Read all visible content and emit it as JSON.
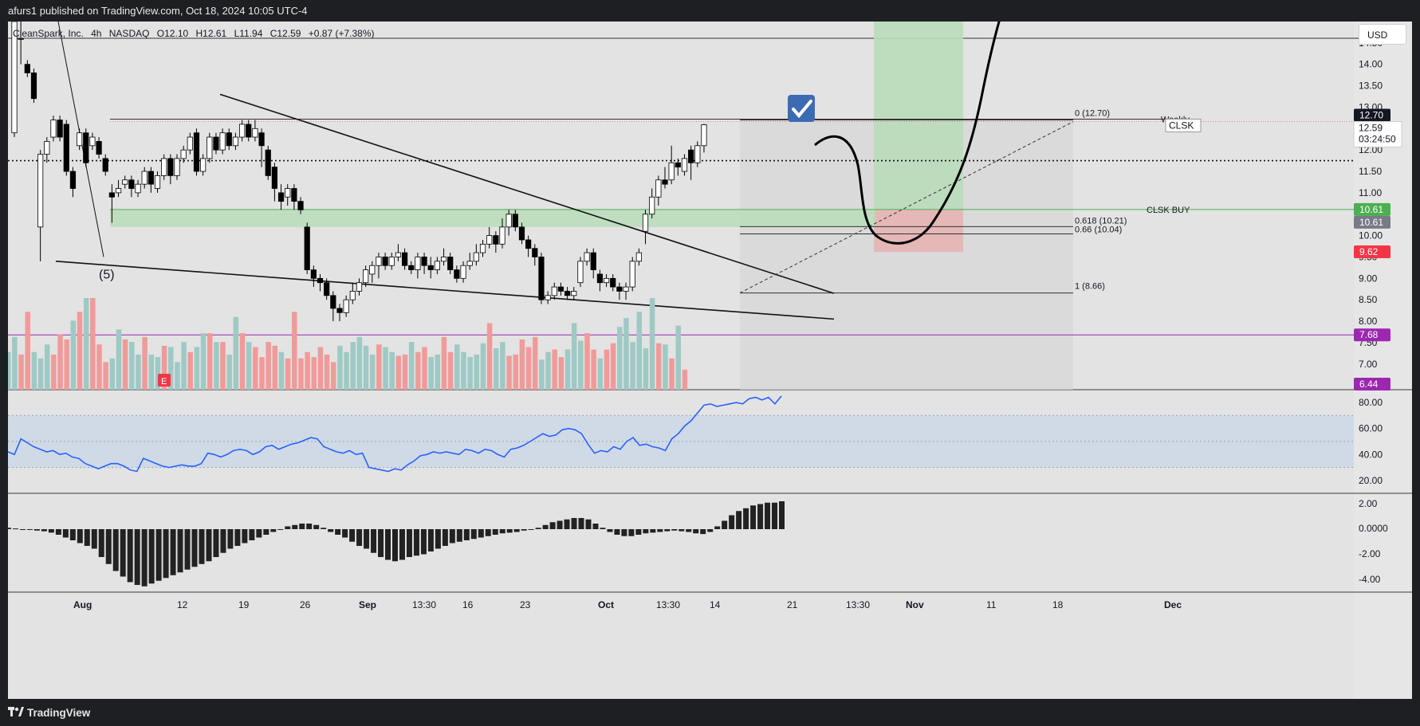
{
  "header": {
    "publisher": "afurs1 published on TradingView.com, Oct 18, 2024 10:05 UTC-4"
  },
  "legend": {
    "symbol": "CleanSpark, Inc.",
    "interval": "4h",
    "exchange": "NASDAQ",
    "open": "O12.10",
    "high": "H12.61",
    "low": "L11.94",
    "close": "C12.59",
    "change": "+0.87 (+7.38%)"
  },
  "currency_button": "USD",
  "footer": {
    "brand": "TradingView"
  },
  "colors": {
    "up": "#26a69a",
    "down": "#ef5350",
    "rsi": "#2962ff",
    "buy_zone": "#4caf50",
    "purple": "#9c27b0",
    "red_label": "#f23645",
    "green_label": "#4caf50"
  },
  "chart_data": {
    "type": "candlestick",
    "symbol": "CLSK",
    "interval": "4h",
    "price_axis": {
      "ticks": [
        "14.50",
        "14.00",
        "13.50",
        "13.00",
        "12.50",
        "12.00",
        "11.50",
        "11.00",
        "10.50",
        "10.00",
        "9.50",
        "9.00",
        "8.50",
        "8.00",
        "7.50",
        "7.00"
      ],
      "range": [
        6.4,
        15.0
      ]
    },
    "time_axis": [
      "Aug",
      "12",
      "19",
      "26",
      "Sep",
      "13:30",
      "16",
      "23",
      "Oct",
      "13:30",
      "14",
      "21",
      "13:30",
      "Nov",
      "11",
      "18",
      "Dec"
    ],
    "candles": [
      [
        12.4,
        15.0,
        15.0,
        12.3
      ],
      [
        14.6,
        14.6,
        15.0,
        14.0
      ],
      [
        14.0,
        13.8,
        14.1,
        13.7
      ],
      [
        13.8,
        13.2,
        13.9,
        13.1
      ],
      [
        10.2,
        11.9,
        12.0,
        9.4
      ],
      [
        11.9,
        12.2,
        12.3,
        11.7
      ],
      [
        12.3,
        12.7,
        12.8,
        12.2
      ],
      [
        12.7,
        12.3,
        12.8,
        12.2
      ],
      [
        12.6,
        11.5,
        12.7,
        11.4
      ],
      [
        11.5,
        11.1,
        11.6,
        10.9
      ],
      [
        12.1,
        12.4,
        12.5,
        12.0
      ],
      [
        12.4,
        11.7,
        12.5,
        11.6
      ],
      [
        12.1,
        12.3,
        12.4,
        12.0
      ],
      [
        12.2,
        11.9,
        12.3,
        11.8
      ],
      [
        11.8,
        11.5,
        11.9,
        11.4
      ],
      [
        11.0,
        10.9,
        11.2,
        10.3
      ],
      [
        11.0,
        11.1,
        11.3,
        10.9
      ],
      [
        11.2,
        11.3,
        11.4,
        11.1
      ],
      [
        11.3,
        11.1,
        11.4,
        10.9
      ],
      [
        11.0,
        11.2,
        11.3,
        10.9
      ],
      [
        11.2,
        11.5,
        11.6,
        11.1
      ],
      [
        11.5,
        11.2,
        11.6,
        11.0
      ],
      [
        11.1,
        11.4,
        11.5,
        11.0
      ],
      [
        11.4,
        11.8,
        11.9,
        11.3
      ],
      [
        11.8,
        11.4,
        11.9,
        11.2
      ],
      [
        11.4,
        11.8,
        11.9,
        11.3
      ],
      [
        11.8,
        12.0,
        12.1,
        11.7
      ],
      [
        12.0,
        12.3,
        12.4,
        11.9
      ],
      [
        12.4,
        11.5,
        12.5,
        11.4
      ],
      [
        11.5,
        11.8,
        11.9,
        11.4
      ],
      [
        11.8,
        12.3,
        12.4,
        11.7
      ],
      [
        12.3,
        12.0,
        12.4,
        11.9
      ],
      [
        12.0,
        12.4,
        12.5,
        11.9
      ],
      [
        12.4,
        12.1,
        12.5,
        12.0
      ],
      [
        12.1,
        12.3,
        12.4,
        12.0
      ],
      [
        12.3,
        12.6,
        12.7,
        12.2
      ],
      [
        12.6,
        12.3,
        12.7,
        12.2
      ],
      [
        12.3,
        12.5,
        12.7,
        12.2
      ],
      [
        12.4,
        12.1,
        12.5,
        11.6
      ],
      [
        12.0,
        11.4,
        12.1,
        11.3
      ],
      [
        11.6,
        11.1,
        11.7,
        10.8
      ],
      [
        11.0,
        10.8,
        11.2,
        10.6
      ],
      [
        10.9,
        11.1,
        11.2,
        10.7
      ],
      [
        11.1,
        10.8,
        11.2,
        10.6
      ],
      [
        10.8,
        10.6,
        10.9,
        10.5
      ],
      [
        10.2,
        9.2,
        10.3,
        9.1
      ],
      [
        9.2,
        9.0,
        9.3,
        8.8
      ],
      [
        9.0,
        8.9,
        9.1,
        8.7
      ],
      [
        8.9,
        8.6,
        9.0,
        8.5
      ],
      [
        8.6,
        8.3,
        8.7,
        8.0
      ],
      [
        8.3,
        8.2,
        8.4,
        8.0
      ],
      [
        8.2,
        8.5,
        8.6,
        8.1
      ],
      [
        8.5,
        8.7,
        8.9,
        8.4
      ],
      [
        8.7,
        8.9,
        9.0,
        8.6
      ],
      [
        8.9,
        9.2,
        9.3,
        8.8
      ],
      [
        9.1,
        9.3,
        9.4,
        8.9
      ],
      [
        9.3,
        9.5,
        9.6,
        9.0
      ],
      [
        9.5,
        9.3,
        9.6,
        9.2
      ],
      [
        9.3,
        9.5,
        9.6,
        9.2
      ],
      [
        9.5,
        9.6,
        9.8,
        9.4
      ],
      [
        9.6,
        9.3,
        9.7,
        9.2
      ],
      [
        9.3,
        9.2,
        9.4,
        9.1
      ],
      [
        9.2,
        9.5,
        9.6,
        9.0
      ],
      [
        9.5,
        9.3,
        9.6,
        9.1
      ],
      [
        9.3,
        9.2,
        9.5,
        9.0
      ],
      [
        9.2,
        9.4,
        9.5,
        9.1
      ],
      [
        9.4,
        9.5,
        9.7,
        9.3
      ],
      [
        9.5,
        9.2,
        9.6,
        9.1
      ],
      [
        9.2,
        9.0,
        9.3,
        8.9
      ],
      [
        9.0,
        9.3,
        9.4,
        8.9
      ],
      [
        9.3,
        9.4,
        9.6,
        9.2
      ],
      [
        9.4,
        9.6,
        9.8,
        9.3
      ],
      [
        9.6,
        9.8,
        9.9,
        9.5
      ],
      [
        9.8,
        10.0,
        10.2,
        9.7
      ],
      [
        10.0,
        9.8,
        10.1,
        9.6
      ],
      [
        9.8,
        10.2,
        10.4,
        9.7
      ],
      [
        10.2,
        10.5,
        10.6,
        10.0
      ],
      [
        10.5,
        10.2,
        10.6,
        10.1
      ],
      [
        10.2,
        9.9,
        10.3,
        9.8
      ],
      [
        9.9,
        9.7,
        10.0,
        9.5
      ],
      [
        9.7,
        9.5,
        9.8,
        9.3
      ],
      [
        9.5,
        8.5,
        9.6,
        8.4
      ],
      [
        8.5,
        8.6,
        8.7,
        8.4
      ],
      [
        8.6,
        8.8,
        8.9,
        8.5
      ],
      [
        8.8,
        8.7,
        8.9,
        8.6
      ],
      [
        8.7,
        8.6,
        8.8,
        8.5
      ],
      [
        8.6,
        8.7,
        8.8,
        8.5
      ],
      [
        8.9,
        9.4,
        9.5,
        8.8
      ],
      [
        9.4,
        9.6,
        9.7,
        9.3
      ],
      [
        9.6,
        9.2,
        9.7,
        9.0
      ],
      [
        9.1,
        8.9,
        9.2,
        8.7
      ],
      [
        8.9,
        9.0,
        9.1,
        8.8
      ],
      [
        9.0,
        8.8,
        9.1,
        8.7
      ],
      [
        8.8,
        8.7,
        8.9,
        8.5
      ],
      [
        8.7,
        8.8,
        8.9,
        8.5
      ],
      [
        8.8,
        9.4,
        9.5,
        8.7
      ],
      [
        9.4,
        9.6,
        9.7,
        9.3
      ],
      [
        10.1,
        10.5,
        10.6,
        9.8
      ],
      [
        10.5,
        10.9,
        11.1,
        10.4
      ],
      [
        10.9,
        11.3,
        11.4,
        10.7
      ],
      [
        11.3,
        11.2,
        11.6,
        11.1
      ],
      [
        11.3,
        11.7,
        12.1,
        11.2
      ],
      [
        11.7,
        11.6,
        11.8,
        11.4
      ],
      [
        11.5,
        11.8,
        11.9,
        11.4
      ],
      [
        12.0,
        11.7,
        12.1,
        11.3
      ],
      [
        11.7,
        12.1,
        12.2,
        11.6
      ],
      [
        12.1,
        12.59,
        12.61,
        11.94
      ]
    ],
    "volume": [
      0.3,
      0.42,
      0.28,
      0.62,
      0.3,
      0.25,
      0.36,
      0.28,
      0.44,
      0.4,
      0.55,
      0.62,
      0.73,
      0.73,
      0.36,
      0.22,
      0.25,
      0.48,
      0.4,
      0.38,
      0.28,
      0.42,
      0.28,
      0.26,
      0.35,
      0.34,
      0.22,
      0.38,
      0.3,
      0.34,
      0.45,
      0.45,
      0.38,
      0.38,
      0.28,
      0.58,
      0.45,
      0.38,
      0.34,
      0.26,
      0.38,
      0.35,
      0.3,
      0.25,
      0.62,
      0.25,
      0.3,
      0.26,
      0.34,
      0.28,
      0.22,
      0.35,
      0.3,
      0.38,
      0.42,
      0.35,
      0.28,
      0.36,
      0.34,
      0.3,
      0.27,
      0.28,
      0.38,
      0.3,
      0.34,
      0.26,
      0.28,
      0.42,
      0.3,
      0.36,
      0.3,
      0.26,
      0.28,
      0.37,
      0.53,
      0.33,
      0.38,
      0.27,
      0.28,
      0.4,
      0.34,
      0.42,
      0.24,
      0.3,
      0.32,
      0.26,
      0.32,
      0.53,
      0.39,
      0.45,
      0.32,
      0.25,
      0.32,
      0.37,
      0.5,
      0.57,
      0.38,
      0.62,
      0.33,
      0.73,
      0.37,
      0.36,
      0.25,
      0.51,
      0.16
    ],
    "rsi": {
      "ticks": [
        "80.00",
        "60.00",
        "40.00",
        "20.00"
      ],
      "band": [
        30,
        70
      ],
      "mid": 50,
      "values": [
        42,
        40,
        52,
        49,
        46,
        44,
        42,
        43,
        40,
        41,
        38,
        37,
        33,
        31,
        29,
        31,
        33,
        33,
        31,
        28,
        27,
        37,
        35,
        33,
        31,
        30,
        31,
        32,
        31,
        31,
        33,
        41,
        40,
        38,
        40,
        43,
        44,
        43,
        40,
        42,
        46,
        47,
        44,
        46,
        48,
        49,
        51,
        53,
        52,
        46,
        44,
        42,
        41,
        43,
        40,
        41,
        30,
        29,
        28,
        27,
        29,
        28,
        32,
        35,
        39,
        40,
        42,
        41,
        42,
        41,
        40,
        44,
        43,
        41,
        44,
        43,
        40,
        38,
        44,
        45,
        47,
        50,
        53,
        56,
        54,
        55,
        59,
        60,
        59,
        56,
        48,
        41,
        43,
        42,
        46,
        44,
        50,
        53,
        47,
        48,
        46,
        45,
        43,
        52,
        56,
        62,
        66,
        72,
        78,
        79,
        77,
        78,
        79,
        80,
        79,
        83,
        84,
        82,
        84,
        79,
        85
      ]
    },
    "macd": {
      "ticks": [
        "2.00",
        "0.0000",
        "-2.00",
        "-4.00"
      ],
      "values": [
        0.1,
        0.05,
        0,
        -0.05,
        -0.1,
        -0.15,
        -0.25,
        -0.4,
        -0.6,
        -0.8,
        -1.0,
        -1.2,
        -1.4,
        -2.0,
        -2.5,
        -3.0,
        -3.4,
        -3.8,
        -4.0,
        -4.1,
        -3.9,
        -3.7,
        -3.5,
        -3.3,
        -3.1,
        -2.9,
        -2.7,
        -2.5,
        -2.3,
        -2.0,
        -1.7,
        -1.4,
        -1.2,
        -1.0,
        -0.8,
        -0.6,
        -0.4,
        -0.2,
        0,
        0.2,
        0.3,
        0.4,
        0.4,
        0.3,
        0.1,
        -0.2,
        -0.4,
        -0.6,
        -0.9,
        -1.2,
        -1.4,
        -1.7,
        -2.0,
        -2.2,
        -2.3,
        -2.2,
        -2.0,
        -1.9,
        -1.8,
        -1.6,
        -1.4,
        -1.2,
        -1.0,
        -0.9,
        -0.8,
        -0.7,
        -0.6,
        -0.5,
        -0.4,
        -0.3,
        -0.25,
        -0.2,
        -0.1,
        0,
        0.1,
        0.3,
        0.5,
        0.6,
        0.7,
        0.8,
        0.8,
        0.7,
        0.4,
        0.1,
        -0.2,
        -0.4,
        -0.5,
        -0.5,
        -0.4,
        -0.3,
        -0.25,
        -0.2,
        -0.15,
        -0.1,
        -0.15,
        -0.2,
        -0.3,
        -0.35,
        -0.2,
        0.2,
        0.6,
        1.0,
        1.3,
        1.5,
        1.7,
        1.8,
        1.9,
        1.9,
        2.0
      ]
    },
    "annotations": {
      "wave_label": "(5)",
      "fib_levels": [
        {
          "label": "0 (12.70)",
          "value": 12.7
        },
        {
          "label": "0.618 (10.21)",
          "value": 10.21
        },
        {
          "label": "0.66 (10.04)",
          "value": 10.04
        },
        {
          "label": "1 (8.66)",
          "value": 8.66
        }
      ],
      "buy_label": "CLSK BUY",
      "weekly_label": "Weekly",
      "earnings_marker": "E",
      "target_price": 12.7,
      "buy_price": 10.61,
      "stop_price": 9.62,
      "purple_level": 7.68,
      "dotted_level": 11.75
    },
    "price_labels": [
      {
        "text": "12.70",
        "color": "#131722"
      },
      {
        "text": "CLSK",
        "color": "#ffffff"
      },
      {
        "text": "12.59",
        "color": "#ffffff"
      },
      {
        "text": "03:24:50",
        "color": "#ffffff"
      },
      {
        "text": "10.61",
        "color": "#4caf50"
      },
      {
        "text": "10.61",
        "color": "#787b86"
      },
      {
        "text": "9.62",
        "color": "#f23645"
      },
      {
        "text": "7.68",
        "color": "#9c27b0"
      },
      {
        "text": "6.44",
        "color": "#9c27b0"
      }
    ]
  }
}
